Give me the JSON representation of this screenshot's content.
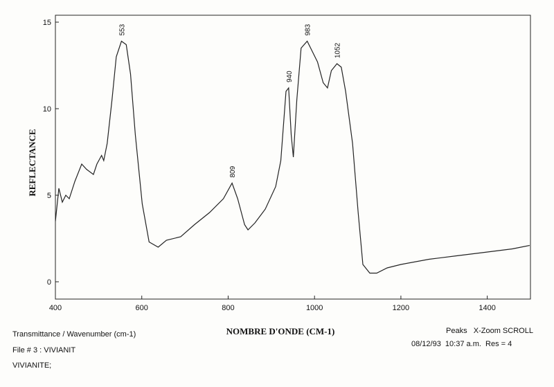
{
  "chart_data": {
    "type": "line",
    "x_label": "NOMBRE D'ONDE (CM-1)",
    "y_label": "REFLECTANCE",
    "x": [
      400,
      408,
      416,
      424,
      432,
      445,
      461,
      472,
      488,
      496,
      507,
      512,
      520,
      531,
      541,
      553,
      564,
      574,
      585,
      601,
      617,
      638,
      657,
      690,
      722,
      757,
      789,
      809,
      822,
      838,
      846,
      862,
      886,
      910,
      922,
      934,
      940,
      946,
      951,
      959,
      969,
      983,
      991,
      1007,
      1020,
      1030,
      1039,
      1052,
      1062,
      1072,
      1088,
      1101,
      1112,
      1128,
      1144,
      1168,
      1200,
      1265,
      1329,
      1394,
      1458,
      1498
    ],
    "values": [
      3.5,
      5.4,
      4.6,
      5.0,
      4.8,
      5.8,
      6.8,
      6.5,
      6.2,
      6.8,
      7.3,
      7.0,
      8.0,
      10.5,
      13.0,
      13.9,
      13.7,
      12.0,
      8.5,
      4.5,
      2.3,
      2.0,
      2.4,
      2.6,
      3.3,
      4.0,
      4.8,
      5.7,
      4.8,
      3.3,
      3.0,
      3.4,
      4.2,
      5.5,
      7.0,
      11.0,
      11.2,
      8.5,
      7.2,
      10.5,
      13.5,
      13.9,
      13.5,
      12.7,
      11.5,
      11.2,
      12.2,
      12.6,
      12.4,
      11.0,
      8.0,
      4.0,
      1.0,
      0.5,
      0.5,
      0.8,
      1.0,
      1.3,
      1.5,
      1.7,
      1.9,
      2.1
    ],
    "color": "#222222",
    "xlim": [
      400,
      1500
    ],
    "ylim": [
      -1,
      15.4
    ],
    "xticks": [
      400,
      600,
      800,
      1000,
      1200,
      1400
    ],
    "yticks": [
      0,
      5,
      10,
      15
    ],
    "peak_labels": [
      553,
      809,
      940,
      983,
      1052
    ]
  },
  "footer": {
    "left": [
      "Transmittance / Wavenumber (cm-1)",
      "File # 3 : VIVIANIT",
      "VIVIANITE;"
    ],
    "right": [
      "Peaks   X-Zoom SCROLL",
      "08/12/93  10:37 a.m.  Res = 4"
    ]
  }
}
